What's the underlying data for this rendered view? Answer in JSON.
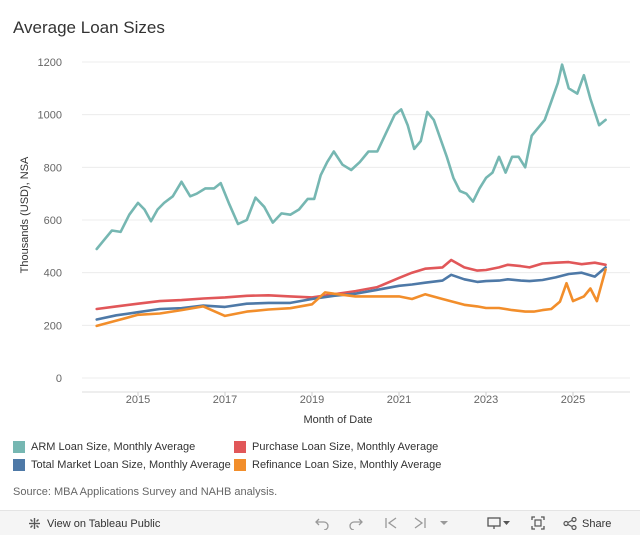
{
  "title": "Average Loan Sizes",
  "source": "Source: MBA Applications Survey and NAHB analysis.",
  "toolbar": {
    "view_label": "View on Tableau Public",
    "share_label": "Share",
    "icons": [
      "undo-icon",
      "redo-icon",
      "revert-icon",
      "forward-icon",
      "more-arrow-icon",
      "download-icon",
      "fullscreen-icon",
      "share-icon"
    ]
  },
  "colors": {
    "arm": "#76b7b2",
    "purchase": "#e15759",
    "total": "#4e79a7",
    "refinance": "#f28e2b",
    "grid": "#ececec",
    "axis_text": "#666666"
  },
  "chart_data": {
    "type": "line",
    "title": "Average Loan Sizes",
    "xlabel": "Month of Date",
    "ylabel": "Thousands (USD), NSA",
    "ylim": [
      0,
      1250
    ],
    "yticks": [
      0,
      200,
      400,
      600,
      800,
      1000,
      1200
    ],
    "xlim": [
      2014.0,
      2025.95
    ],
    "xticks": [
      2015,
      2017,
      2019,
      2021,
      2023,
      2025
    ],
    "grid": true,
    "legend": "bottom",
    "series": [
      {
        "name": "ARM Loan Size, Monthly Average",
        "color": "#76b7b2",
        "x": [
          2014.05,
          2014.2,
          2014.4,
          2014.6,
          2014.8,
          2015.0,
          2015.15,
          2015.3,
          2015.45,
          2015.6,
          2015.8,
          2016.0,
          2016.2,
          2016.35,
          2016.55,
          2016.75,
          2016.9,
          2017.1,
          2017.3,
          2017.5,
          2017.7,
          2017.9,
          2018.1,
          2018.3,
          2018.5,
          2018.7,
          2018.9,
          2019.05,
          2019.2,
          2019.35,
          2019.5,
          2019.7,
          2019.9,
          2020.1,
          2020.3,
          2020.5,
          2020.7,
          2020.9,
          2021.05,
          2021.2,
          2021.35,
          2021.5,
          2021.65,
          2021.8,
          2021.95,
          2022.1,
          2022.25,
          2022.4,
          2022.55,
          2022.7,
          2022.85,
          2023.0,
          2023.15,
          2023.3,
          2023.45,
          2023.6,
          2023.75,
          2023.9,
          2024.05,
          2024.2,
          2024.35,
          2024.5,
          2024.65,
          2024.75,
          2024.9,
          2025.1,
          2025.25,
          2025.4,
          2025.6,
          2025.75
        ],
        "values": [
          490,
          520,
          560,
          555,
          620,
          665,
          640,
          595,
          640,
          665,
          690,
          745,
          690,
          700,
          720,
          720,
          740,
          660,
          585,
          600,
          685,
          650,
          590,
          625,
          620,
          640,
          680,
          680,
          770,
          820,
          860,
          810,
          790,
          820,
          860,
          860,
          930,
          1000,
          1020,
          960,
          870,
          900,
          1010,
          980,
          910,
          840,
          760,
          710,
          700,
          670,
          720,
          760,
          780,
          840,
          780,
          840,
          840,
          800,
          920,
          950,
          980,
          1050,
          1120,
          1190,
          1100,
          1080,
          1150,
          1060,
          960,
          980
        ]
      },
      {
        "name": "Purchase Loan Size, Monthly Average",
        "color": "#e15759",
        "x": [
          2014.05,
          2014.5,
          2015.0,
          2015.5,
          2016.0,
          2016.5,
          2017.0,
          2017.5,
          2018.0,
          2018.5,
          2019.0,
          2019.5,
          2020.0,
          2020.5,
          2021.0,
          2021.3,
          2021.6,
          2022.0,
          2022.2,
          2022.5,
          2022.8,
          2023.0,
          2023.3,
          2023.5,
          2023.8,
          2024.0,
          2024.3,
          2024.6,
          2024.9,
          2025.2,
          2025.5,
          2025.75
        ],
        "values": [
          262,
          272,
          282,
          292,
          296,
          302,
          306,
          312,
          314,
          310,
          306,
          318,
          330,
          345,
          380,
          400,
          415,
          420,
          448,
          420,
          408,
          410,
          420,
          430,
          425,
          420,
          435,
          438,
          440,
          432,
          438,
          430
        ]
      },
      {
        "name": "Total Market Loan Size, Monthly Average",
        "color": "#4e79a7",
        "x": [
          2014.05,
          2014.5,
          2015.0,
          2015.5,
          2016.0,
          2016.5,
          2017.0,
          2017.5,
          2018.0,
          2018.5,
          2019.0,
          2019.5,
          2020.0,
          2020.5,
          2021.0,
          2021.3,
          2021.6,
          2022.0,
          2022.2,
          2022.5,
          2022.8,
          2023.0,
          2023.3,
          2023.5,
          2023.8,
          2024.0,
          2024.3,
          2024.6,
          2024.9,
          2025.2,
          2025.5,
          2025.75
        ],
        "values": [
          222,
          238,
          250,
          262,
          265,
          275,
          270,
          282,
          285,
          285,
          300,
          312,
          320,
          335,
          350,
          355,
          362,
          370,
          392,
          375,
          365,
          368,
          370,
          375,
          370,
          368,
          372,
          382,
          395,
          400,
          385,
          420
        ]
      },
      {
        "name": "Refinance Loan Size, Monthly Average",
        "color": "#f28e2b",
        "x": [
          2014.05,
          2014.5,
          2015.0,
          2015.5,
          2016.0,
          2016.5,
          2017.0,
          2017.5,
          2018.0,
          2018.5,
          2019.0,
          2019.3,
          2019.5,
          2020.0,
          2020.5,
          2021.0,
          2021.3,
          2021.6,
          2022.0,
          2022.5,
          2022.8,
          2023.0,
          2023.3,
          2023.6,
          2023.9,
          2024.1,
          2024.3,
          2024.5,
          2024.7,
          2024.85,
          2025.0,
          2025.25,
          2025.4,
          2025.55,
          2025.75
        ],
        "values": [
          198,
          218,
          240,
          245,
          258,
          272,
          236,
          252,
          260,
          265,
          280,
          325,
          320,
          310,
          310,
          310,
          300,
          318,
          300,
          278,
          272,
          266,
          266,
          258,
          252,
          252,
          258,
          262,
          290,
          360,
          292,
          310,
          340,
          292,
          412
        ]
      }
    ]
  }
}
